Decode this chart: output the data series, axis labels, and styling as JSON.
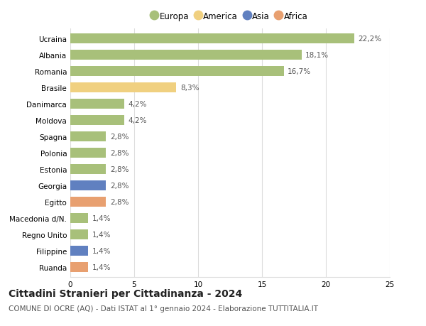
{
  "categories": [
    "Ucraina",
    "Albania",
    "Romania",
    "Brasile",
    "Danimarca",
    "Moldova",
    "Spagna",
    "Polonia",
    "Estonia",
    "Georgia",
    "Egitto",
    "Macedonia d/N.",
    "Regno Unito",
    "Filippine",
    "Ruanda"
  ],
  "values": [
    22.2,
    18.1,
    16.7,
    8.3,
    4.2,
    4.2,
    2.8,
    2.8,
    2.8,
    2.8,
    2.8,
    1.4,
    1.4,
    1.4,
    1.4
  ],
  "continents": [
    "Europa",
    "Europa",
    "Europa",
    "America",
    "Europa",
    "Europa",
    "Europa",
    "Europa",
    "Europa",
    "Asia",
    "Africa",
    "Europa",
    "Europa",
    "Asia",
    "Africa"
  ],
  "labels": [
    "22,2%",
    "18,1%",
    "16,7%",
    "8,3%",
    "4,2%",
    "4,2%",
    "2,8%",
    "2,8%",
    "2,8%",
    "2,8%",
    "2,8%",
    "1,4%",
    "1,4%",
    "1,4%",
    "1,4%"
  ],
  "continent_colors": {
    "Europa": "#a8c07a",
    "America": "#f0d080",
    "Asia": "#6080c0",
    "Africa": "#e8a070"
  },
  "legend_items": [
    "Europa",
    "America",
    "Asia",
    "Africa"
  ],
  "legend_colors": [
    "#a8c07a",
    "#f0d080",
    "#6080c0",
    "#e8a070"
  ],
  "xlim": [
    0,
    25
  ],
  "xticks": [
    0,
    5,
    10,
    15,
    20,
    25
  ],
  "title": "Cittadini Stranieri per Cittadinanza - 2024",
  "subtitle": "COMUNE DI OCRE (AQ) - Dati ISTAT al 1° gennaio 2024 - Elaborazione TUTTITALIA.IT",
  "background_color": "#ffffff",
  "grid_color": "#dddddd",
  "bar_height": 0.6,
  "label_fontsize": 7.5,
  "tick_fontsize": 7.5,
  "title_fontsize": 10,
  "subtitle_fontsize": 7.5
}
